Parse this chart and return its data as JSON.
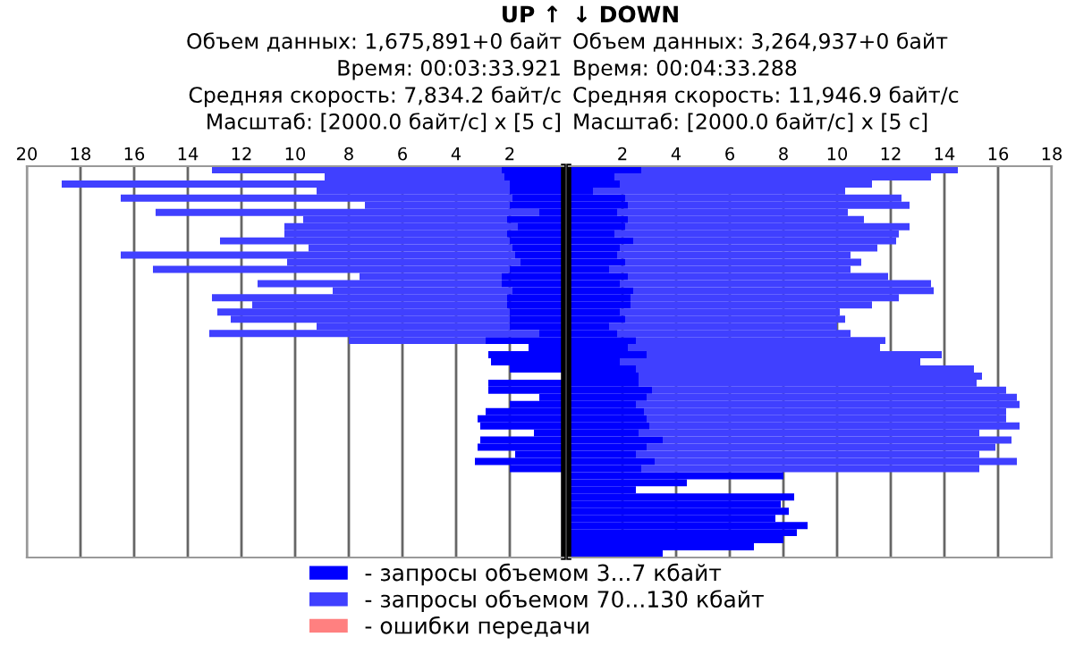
{
  "chart_data": [
    {
      "type": "bar",
      "orientation": "horizontal",
      "stacked": true,
      "title": "UP ↑",
      "annotations": [
        "Объем данных: 1,675,891+0 байт",
        "Время: 00:03:33.921",
        "Средняя скорость: 7,834.2 байт/с",
        "Масштаб: [2000.0 байт/с] x [5 с]"
      ],
      "categories": [
        null,
        null,
        null,
        null,
        null,
        null,
        null,
        null,
        null,
        null,
        null,
        null,
        null,
        null,
        null,
        null,
        null,
        null,
        null,
        null,
        null,
        null,
        null,
        null,
        null,
        null,
        null,
        null,
        null,
        null,
        null,
        null,
        null,
        null,
        null,
        null,
        null,
        null,
        null,
        null,
        null,
        null,
        null,
        null,
        null,
        null,
        null,
        null,
        null,
        null,
        null,
        null,
        null,
        null,
        null
      ],
      "series": [
        {
          "name": "- запросы объемом 3...7 кбайт",
          "color": "#0000ff",
          "values": [
            2.3,
            2.2,
            2.0,
            2.0,
            1.9,
            2.0,
            0.9,
            2.1,
            1.7,
            2.1,
            2.0,
            1.9,
            1.8,
            1.6,
            2.0,
            2.3,
            2.3,
            1.9,
            2.1,
            2.1,
            2.0,
            2.0,
            2.0,
            0.9,
            2.9,
            1.3,
            2.8,
            2.7,
            2.0,
            null,
            2.8,
            2.8,
            0.9,
            2.0,
            2.9,
            3.2,
            3.1,
            1.1,
            3.1,
            3.2,
            1.8,
            3.3,
            2.0,
            null,
            null,
            null,
            null,
            null,
            null,
            null,
            null,
            null,
            null,
            null,
            null
          ]
        },
        {
          "name": "- запросы объемом 70...130 кбайт",
          "color": "#4040ff",
          "values": [
            10.8,
            6.7,
            16.7,
            7.2,
            14.6,
            5.4,
            14.3,
            7.6,
            8.7,
            8.3,
            10.8,
            7.6,
            14.7,
            8.7,
            13.3,
            5.3,
            9.1,
            6.7,
            11.0,
            9.5,
            10.9,
            10.4,
            7.2,
            12.3,
            5.1,
            null,
            null,
            null,
            null,
            null,
            null,
            null,
            null,
            null,
            null,
            null,
            null,
            null,
            null,
            null,
            null,
            null,
            null,
            null,
            null,
            null,
            null,
            null,
            null,
            null,
            null,
            null,
            null,
            null,
            null
          ]
        },
        {
          "name": "- ошибки передачи",
          "color": "#ff8080",
          "values": [
            null,
            null,
            null,
            null,
            null,
            null,
            null,
            null,
            null,
            null,
            null,
            null,
            null,
            null,
            null,
            null,
            null,
            null,
            null,
            null,
            null,
            null,
            null,
            null,
            null,
            null,
            null,
            null,
            null,
            null,
            null,
            null,
            null,
            null,
            null,
            null,
            null,
            null,
            null,
            null,
            null,
            null,
            null,
            null,
            null,
            null,
            null,
            null,
            null,
            null,
            null,
            null,
            null,
            null,
            null
          ]
        }
      ],
      "xlim": [
        20,
        0
      ],
      "xticks": [
        20,
        18,
        16,
        14,
        12,
        10,
        8,
        6,
        4,
        2
      ],
      "grid": "x",
      "legend": "bottom",
      "tick_labels": "x"
    },
    {
      "type": "bar",
      "orientation": "horizontal",
      "stacked": true,
      "title": "↓ DOWN",
      "annotations": [
        "Объем данных: 3,264,937+0 байт",
        "Время: 00:04:33.288",
        "Средняя скорость: 11,946.9 байт/с",
        "Масштаб: [2000.0 байт/с] x [5 с]"
      ],
      "categories": [
        null,
        null,
        null,
        null,
        null,
        null,
        null,
        null,
        null,
        null,
        null,
        null,
        null,
        null,
        null,
        null,
        null,
        null,
        null,
        null,
        null,
        null,
        null,
        null,
        null,
        null,
        null,
        null,
        null,
        null,
        null,
        null,
        null,
        null,
        null,
        null,
        null,
        null,
        null,
        null,
        null,
        null,
        null,
        null,
        null,
        null,
        null,
        null,
        null,
        null,
        null,
        null,
        null,
        null,
        null
      ],
      "series": [
        {
          "color": "#0000ff",
          "values": [
            2.7,
            1.7,
            1.9,
            0.9,
            2.1,
            2.2,
            1.8,
            2.2,
            2.1,
            1.7,
            2.4,
            1.9,
            1.8,
            2.1,
            1.5,
            2.2,
            1.9,
            2.4,
            2.3,
            2.3,
            1.9,
            2.1,
            1.5,
            1.8,
            2.5,
            2.2,
            2.9,
            1.9,
            2.5,
            2.6,
            2.6,
            3.1,
            2.9,
            2.5,
            2.8,
            2.9,
            3.0,
            2.6,
            3.5,
            2.9,
            2.5,
            3.2,
            2.7,
            8.0,
            4.4,
            2.5,
            8.4,
            7.9,
            8.2,
            7.7,
            8.9,
            8.5,
            8.0,
            6.9,
            3.5
          ]
        },
        {
          "color": "#4040ff",
          "values": [
            11.8,
            11.8,
            9.4,
            9.4,
            10.3,
            10.5,
            8.6,
            8.8,
            10.6,
            10.6,
            9.8,
            9.6,
            8.7,
            8.8,
            9.0,
            9.7,
            11.6,
            11.2,
            10.0,
            9.0,
            8.2,
            8.2,
            8.5,
            8.7,
            9.3,
            9.4,
            11.0,
            11.2,
            12.6,
            12.8,
            12.6,
            13.2,
            13.8,
            14.3,
            13.5,
            13.4,
            13.8,
            12.7,
            13.0,
            13.0,
            12.8,
            13.5,
            12.6,
            null,
            null,
            null,
            null,
            null,
            null,
            null,
            null,
            null,
            null,
            null,
            null
          ]
        }
      ],
      "xlim": [
        0,
        18
      ],
      "xticks": [
        2,
        4,
        6,
        8,
        10,
        12,
        14,
        16,
        18
      ],
      "grid": "x",
      "tick_labels": "x"
    }
  ]
}
